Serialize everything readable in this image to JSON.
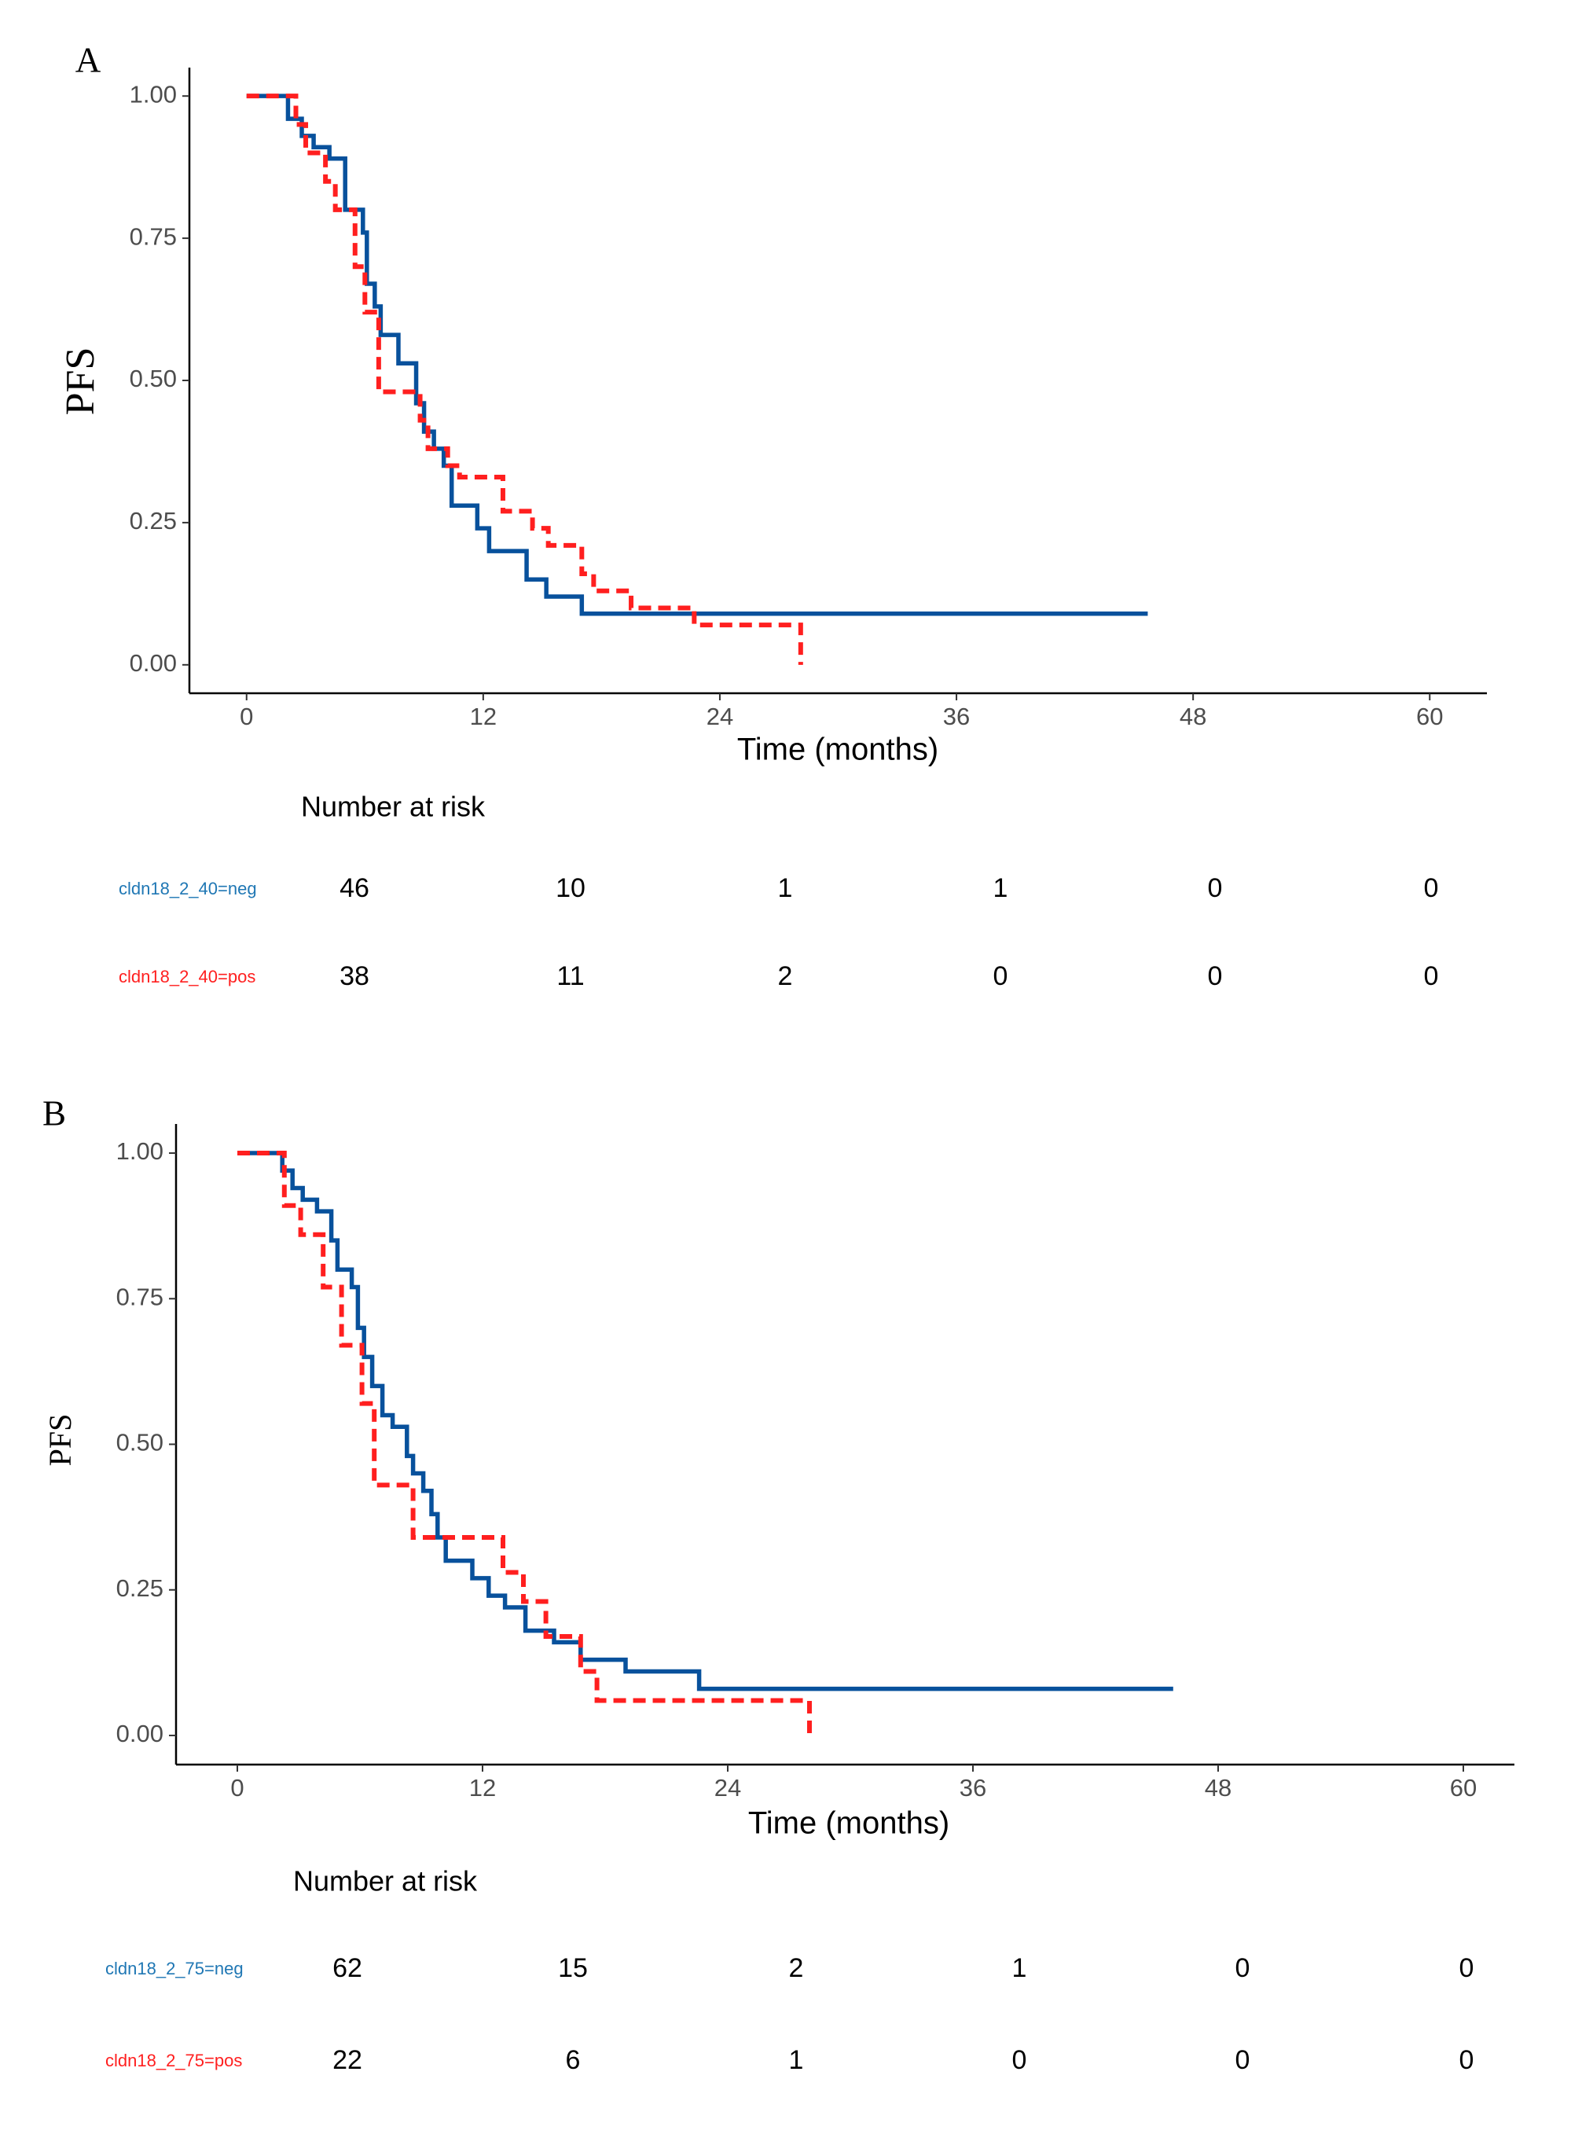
{
  "chart_data": [
    {
      "type": "step",
      "label": "A",
      "ylabel": "PFS",
      "xlabel": "Time (months)",
      "xlim": [
        -2.9,
        62.9
      ],
      "ylim": [
        -0.05,
        1.05
      ],
      "xticks": [
        0,
        12,
        24,
        36,
        48,
        60
      ],
      "yticks": [
        {
          "value": 0,
          "label": "0.00"
        },
        {
          "value": 0.25,
          "label": "0.25"
        },
        {
          "value": 0.5,
          "label": "0.50"
        },
        {
          "value": 0.75,
          "label": "0.75"
        },
        {
          "value": 1,
          "label": "1.00"
        }
      ],
      "series": [
        {
          "name": "cldn18_2_40=neg",
          "color": "#08519c",
          "dash": false,
          "x": [
            0,
            2.1,
            2.8,
            3.4,
            4.2,
            5.0,
            5.9,
            6.1,
            6.5,
            6.8,
            7.7,
            8.6,
            9.0,
            9.5,
            10.0,
            10.4,
            11.7,
            12.3,
            14.2,
            15.2,
            17.0,
            45.7
          ],
          "values": [
            1,
            0.96,
            0.93,
            0.91,
            0.89,
            0.8,
            0.76,
            0.67,
            0.63,
            0.58,
            0.53,
            0.46,
            0.41,
            0.38,
            0.35,
            0.28,
            0.24,
            0.2,
            0.15,
            0.12,
            0.09,
            0.09
          ]
        },
        {
          "name": "cldn18_2_40=pos",
          "color": "#ff1f1f",
          "dash": true,
          "x": [
            0,
            2.5,
            3.0,
            4.0,
            4.5,
            5.5,
            6.0,
            6.7,
            8.8,
            9.2,
            10.2,
            10.8,
            13.0,
            14.5,
            15.3,
            17.0,
            17.6,
            19.5,
            22.7,
            28.1
          ],
          "values": [
            1,
            0.95,
            0.9,
            0.85,
            0.8,
            0.7,
            0.62,
            0.48,
            0.43,
            0.38,
            0.35,
            0.33,
            0.27,
            0.24,
            0.21,
            0.16,
            0.13,
            0.1,
            0.07,
            0
          ]
        }
      ],
      "risk_table": {
        "title": "Number at risk",
        "rows": [
          {
            "name": "cldn18_2_40=neg",
            "color": "#1f77b4",
            "values": [
              46,
              10,
              1,
              1,
              0,
              0
            ]
          },
          {
            "name": "cldn18_2_40=pos",
            "color": "#ff1f1f",
            "values": [
              38,
              11,
              2,
              0,
              0,
              0
            ]
          }
        ]
      }
    },
    {
      "type": "step",
      "label": "B",
      "ylabel": "PFS",
      "xlabel": "Time (months)",
      "xlim": [
        -3,
        62.5
      ],
      "ylim": [
        -0.05,
        1.05
      ],
      "xticks": [
        0,
        12,
        24,
        36,
        48,
        60
      ],
      "yticks": [
        {
          "value": 0,
          "label": "0.00"
        },
        {
          "value": 0.25,
          "label": "0.25"
        },
        {
          "value": 0.5,
          "label": "0.50"
        },
        {
          "value": 0.75,
          "label": "0.75"
        },
        {
          "value": 1,
          "label": "1.00"
        }
      ],
      "series": [
        {
          "name": "cldn18_2_75=neg",
          "color": "#08519c",
          "dash": false,
          "x": [
            0,
            2.2,
            2.7,
            3.2,
            3.9,
            4.6,
            4.9,
            5.6,
            5.9,
            6.2,
            6.6,
            7.1,
            7.6,
            8.3,
            8.6,
            9.1,
            9.5,
            9.8,
            10.2,
            11.5,
            12.3,
            13.1,
            14.1,
            15.5,
            16.8,
            19.0,
            22.6,
            45.8
          ],
          "values": [
            1,
            0.97,
            0.94,
            0.92,
            0.9,
            0.85,
            0.8,
            0.77,
            0.7,
            0.65,
            0.6,
            0.55,
            0.53,
            0.48,
            0.45,
            0.42,
            0.38,
            0.34,
            0.3,
            0.27,
            0.24,
            0.22,
            0.18,
            0.16,
            0.13,
            0.11,
            0.08,
            0.08
          ]
        },
        {
          "name": "cldn18_2_75=pos",
          "color": "#ff1f1f",
          "dash": true,
          "x": [
            0,
            2.3,
            3.1,
            4.2,
            5.1,
            6.1,
            6.7,
            8.6,
            13.0,
            14.0,
            15.1,
            16.8,
            17.6,
            28.0
          ],
          "values": [
            1,
            0.91,
            0.86,
            0.77,
            0.67,
            0.57,
            0.43,
            0.34,
            0.28,
            0.23,
            0.17,
            0.11,
            0.06,
            0
          ]
        }
      ],
      "risk_table": {
        "title": "Number at risk",
        "rows": [
          {
            "name": "cldn18_2_75=neg",
            "color": "#1f77b4",
            "values": [
              62,
              15,
              2,
              1,
              0,
              0
            ]
          },
          {
            "name": "cldn18_2_75=pos",
            "color": "#ff1f1f",
            "values": [
              22,
              6,
              1,
              0,
              0,
              0
            ]
          }
        ]
      }
    }
  ]
}
